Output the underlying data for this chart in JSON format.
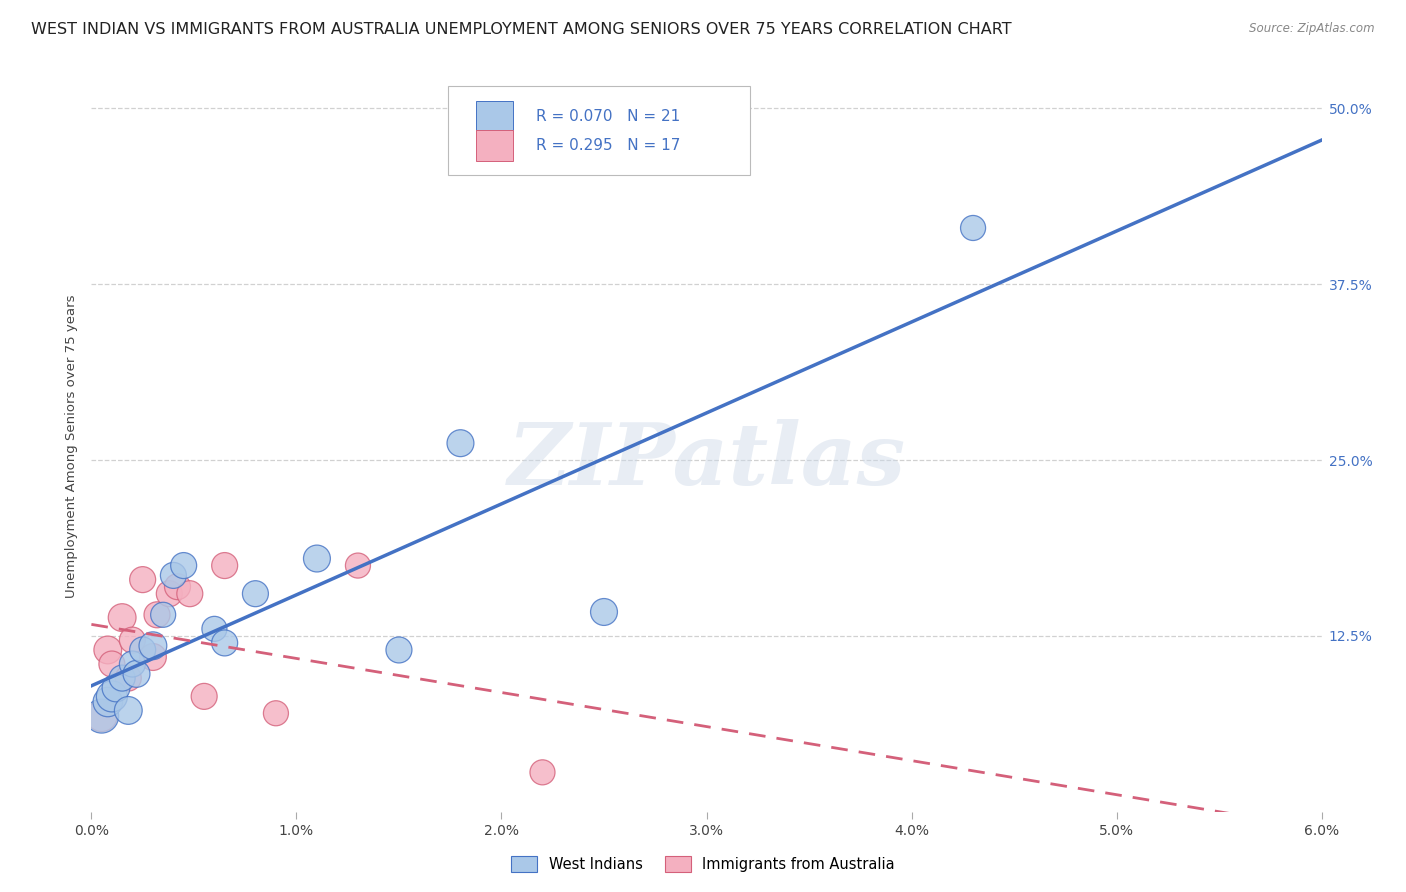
{
  "title": "WEST INDIAN VS IMMIGRANTS FROM AUSTRALIA UNEMPLOYMENT AMONG SENIORS OVER 75 YEARS CORRELATION CHART",
  "source": "Source: ZipAtlas.com",
  "ylabel": "Unemployment Among Seniors over 75 years",
  "xlim": [
    0.0,
    0.06
  ],
  "ylim": [
    0.0,
    0.52
  ],
  "xtick_labels": [
    "0.0%",
    "1.0%",
    "2.0%",
    "3.0%",
    "4.0%",
    "5.0%",
    "6.0%"
  ],
  "xtick_vals": [
    0.0,
    0.01,
    0.02,
    0.03,
    0.04,
    0.05,
    0.06
  ],
  "ytick_labels": [
    "12.5%",
    "25.0%",
    "37.5%",
    "50.0%"
  ],
  "ytick_vals": [
    0.125,
    0.25,
    0.375,
    0.5
  ],
  "legend_label1": "West Indians",
  "legend_label2": "Immigrants from Australia",
  "r1": "0.070",
  "n1": "21",
  "r2": "0.295",
  "n2": "17",
  "color1": "#aac8e8",
  "color2": "#f4b0c0",
  "line_color1": "#4472c4",
  "line_color2": "#d4607a",
  "background_color": "#ffffff",
  "grid_color": "#cccccc",
  "title_color": "#222222",
  "right_tick_color": "#4472c4",
  "west_indians_x": [
    0.0005,
    0.0008,
    0.001,
    0.0012,
    0.0015,
    0.0018,
    0.002,
    0.0022,
    0.0025,
    0.003,
    0.0035,
    0.004,
    0.0045,
    0.006,
    0.0065,
    0.008,
    0.011,
    0.015,
    0.018,
    0.025,
    0.043
  ],
  "west_indians_y": [
    0.068,
    0.078,
    0.082,
    0.088,
    0.095,
    0.072,
    0.105,
    0.098,
    0.115,
    0.118,
    0.14,
    0.168,
    0.175,
    0.13,
    0.12,
    0.155,
    0.18,
    0.115,
    0.262,
    0.142,
    0.415
  ],
  "west_indians_size": [
    120,
    90,
    100,
    80,
    70,
    80,
    70,
    75,
    70,
    80,
    65,
    70,
    70,
    65,
    70,
    70,
    75,
    70,
    75,
    75,
    65
  ],
  "australia_x": [
    0.0005,
    0.0008,
    0.001,
    0.0015,
    0.0018,
    0.002,
    0.0025,
    0.003,
    0.0032,
    0.0038,
    0.0042,
    0.0048,
    0.0055,
    0.0065,
    0.009,
    0.013,
    0.022
  ],
  "australia_y": [
    0.068,
    0.115,
    0.105,
    0.138,
    0.095,
    0.122,
    0.165,
    0.11,
    0.14,
    0.155,
    0.16,
    0.155,
    0.082,
    0.175,
    0.07,
    0.175,
    0.028
  ],
  "australia_size": [
    100,
    80,
    70,
    80,
    70,
    70,
    70,
    75,
    70,
    70,
    70,
    70,
    70,
    70,
    65,
    65,
    65
  ],
  "watermark_text": "ZIPatlas",
  "title_fontsize": 11.5,
  "axis_label_fontsize": 9.5,
  "tick_fontsize": 10,
  "legend_fontsize": 11
}
